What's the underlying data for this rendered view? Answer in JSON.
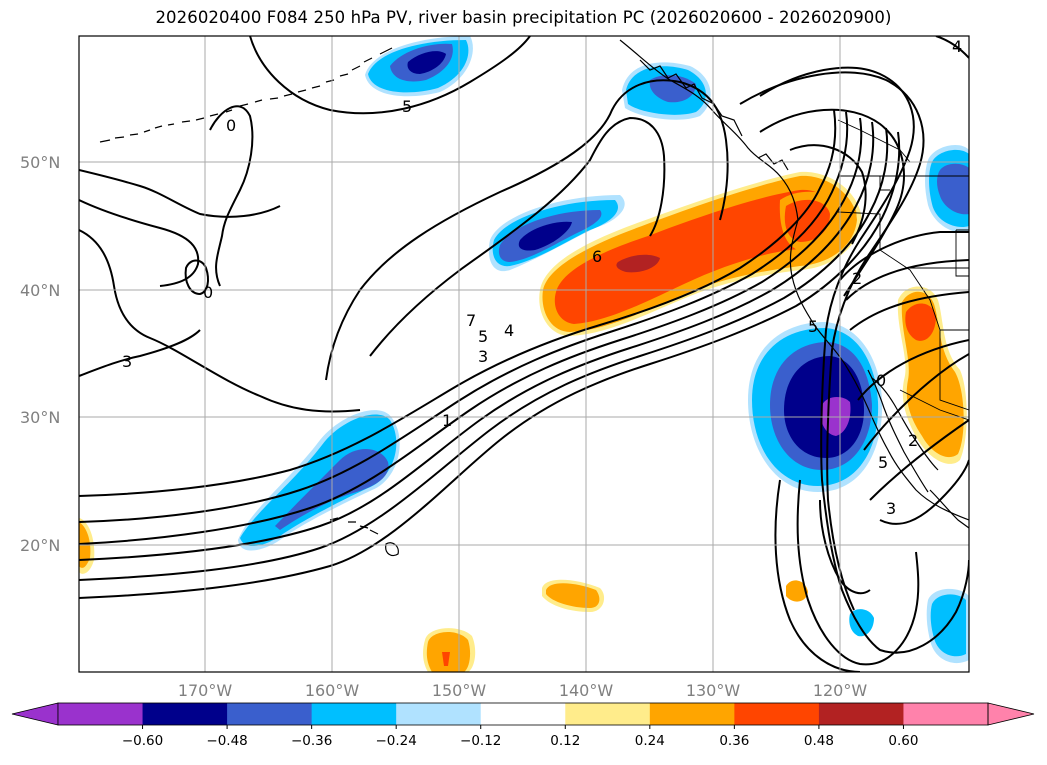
{
  "title": "2026020400 F084 250 hPa PV, river basin precipitation PC (2026020600 - 2026020900)",
  "map": {
    "lat_labels": [
      "50°N",
      "40°N",
      "30°N",
      "20°N"
    ],
    "lon_labels": [
      "170°W",
      "160°W",
      "150°W",
      "140°W",
      "130°W",
      "120°W"
    ],
    "contour_labels": [
      {
        "id": "5-alaska",
        "text": "5"
      },
      {
        "id": "0-aleutian",
        "text": "0"
      },
      {
        "id": "0-west",
        "text": "0"
      },
      {
        "id": "3-west",
        "text": "3"
      },
      {
        "id": "7-jet",
        "text": "7"
      },
      {
        "id": "5-jet",
        "text": "5"
      },
      {
        "id": "4-jet",
        "text": "4"
      },
      {
        "id": "3-jet",
        "text": "3"
      },
      {
        "id": "1-jet",
        "text": "1"
      },
      {
        "id": "6-jet",
        "text": "6"
      },
      {
        "id": "5-coast",
        "text": "5"
      },
      {
        "id": "2-coast",
        "text": "2"
      },
      {
        "id": "0-mexico",
        "text": "0"
      },
      {
        "id": "2-mexico",
        "text": "2"
      },
      {
        "id": "5-mexico",
        "text": "5"
      },
      {
        "id": "3-south",
        "text": "3"
      },
      {
        "id": "4-corner",
        "text": "4"
      }
    ]
  },
  "colorbar": {
    "colors": [
      "#9a32cd",
      "#00008b",
      "#3a5fcd",
      "#00bfff",
      "#b0e2ff",
      "#ffffff",
      "#ffec8b",
      "#ffa500",
      "#ff4500",
      "#b22222",
      "#ff82ab"
    ],
    "tick_labels": [
      "−0.60",
      "−0.48",
      "−0.36",
      "−0.24",
      "−0.12",
      "0.12",
      "0.24",
      "0.36",
      "0.48",
      "0.60"
    ]
  }
}
